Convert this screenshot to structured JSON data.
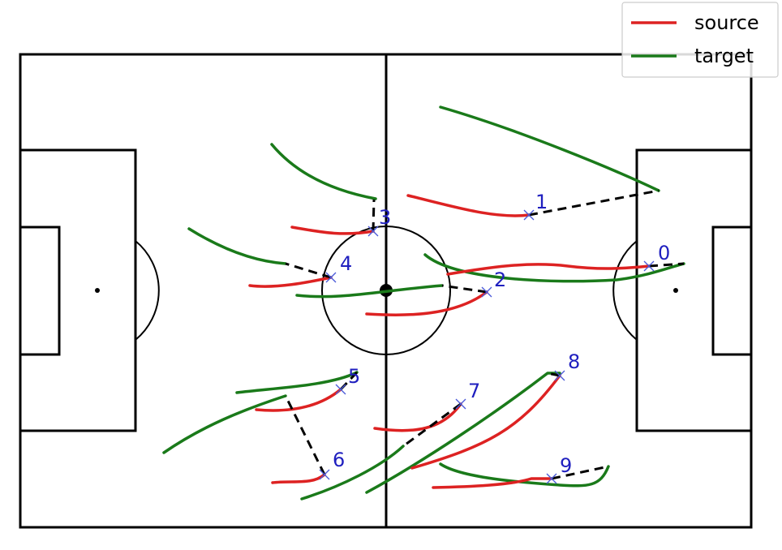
{
  "legend": {
    "source_label": "source",
    "target_label": "target",
    "placement": "top-right"
  },
  "colors": {
    "source": "#dd2222",
    "target": "#1a7a1a",
    "pitch": "#000000",
    "label": "#1f1fbf",
    "association": "#000000"
  },
  "players": [
    {
      "label": "0"
    },
    {
      "label": "1"
    },
    {
      "label": "2"
    },
    {
      "label": "3"
    },
    {
      "label": "4"
    },
    {
      "label": "5"
    },
    {
      "label": "6"
    },
    {
      "label": "7"
    },
    {
      "label": "8"
    },
    {
      "label": "9"
    }
  ]
}
